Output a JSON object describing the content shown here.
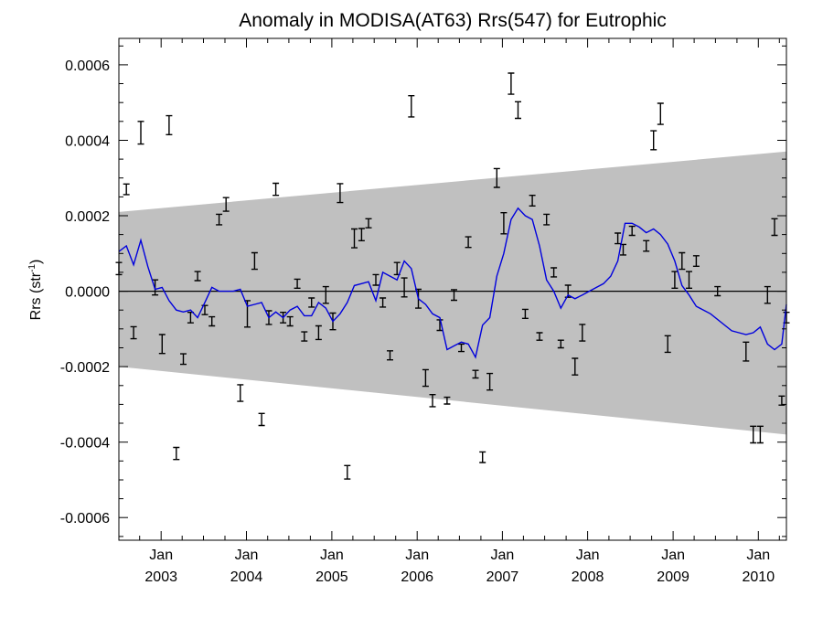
{
  "chart_data": {
    "type": "line",
    "title": "Anomaly in MODISA(AT63) Rrs(547) for Eutrophic",
    "ylabel_prefix": "Rrs (str",
    "ylabel_sup": "-1",
    "ylabel_suffix": ")",
    "xlabel": "",
    "ylim": [
      -0.00066,
      0.00067
    ],
    "xlim": [
      "2002-07-04",
      "2010-05-01"
    ],
    "y_ticks": [
      {
        "value": 0.0006,
        "label": "0.0006"
      },
      {
        "value": 0.0004,
        "label": "0.0004"
      },
      {
        "value": 0.0002,
        "label": "0.0002"
      },
      {
        "value": 0.0,
        "label": "0.0000"
      },
      {
        "value": -0.0002,
        "label": "-0.0002"
      },
      {
        "value": -0.0004,
        "label": "-0.0004"
      },
      {
        "value": -0.0006,
        "label": "-0.0006"
      }
    ],
    "x_ticks": [
      {
        "date": "2003-01-01",
        "month": "Jan",
        "year": "2003"
      },
      {
        "date": "2004-01-01",
        "month": "Jan",
        "year": "2004"
      },
      {
        "date": "2005-01-01",
        "month": "Jan",
        "year": "2005"
      },
      {
        "date": "2006-01-01",
        "month": "Jan",
        "year": "2006"
      },
      {
        "date": "2007-01-01",
        "month": "Jan",
        "year": "2007"
      },
      {
        "date": "2008-01-01",
        "month": "Jan",
        "year": "2008"
      },
      {
        "date": "2009-01-01",
        "month": "Jan",
        "year": "2009"
      },
      {
        "date": "2010-01-01",
        "month": "Jan",
        "year": "2010"
      }
    ],
    "zero_line": 0.0,
    "band": {
      "upper": [
        {
          "date": "2002-07-04",
          "value": 0.00021
        },
        {
          "date": "2010-05-01",
          "value": 0.00037
        }
      ],
      "lower": [
        {
          "date": "2002-07-04",
          "value": -0.0002
        },
        {
          "date": "2010-05-01",
          "value": -0.00038
        }
      ],
      "color": "#c0c0c0"
    },
    "series": [
      {
        "kind": "line",
        "color": "#0000dd",
        "points": [
          [
            "2002-07-04",
            0.000105
          ],
          [
            "2002-08-05",
            0.00012
          ],
          [
            "2002-09-05",
            7e-05
          ],
          [
            "2002-10-06",
            0.000135
          ],
          [
            "2002-11-05",
            6.5e-05
          ],
          [
            "2002-12-06",
            5e-06
          ],
          [
            "2003-01-05",
            1e-05
          ],
          [
            "2003-02-04",
            -2.5e-05
          ],
          [
            "2003-03-07",
            -5e-05
          ],
          [
            "2003-04-06",
            -5.5e-05
          ],
          [
            "2003-05-07",
            -5e-05
          ],
          [
            "2003-06-06",
            -7e-05
          ],
          [
            "2003-07-07",
            -3e-05
          ],
          [
            "2003-08-06",
            1e-05
          ],
          [
            "2003-09-06",
            0.0
          ],
          [
            "2003-10-06",
            0.0
          ],
          [
            "2003-11-06",
            0.0
          ],
          [
            "2003-12-06",
            5e-06
          ],
          [
            "2004-01-05",
            -4e-05
          ],
          [
            "2004-02-05",
            -3.5e-05
          ],
          [
            "2004-03-06",
            -3e-05
          ],
          [
            "2004-04-06",
            -7e-05
          ],
          [
            "2004-05-06",
            -5.5e-05
          ],
          [
            "2004-06-06",
            -7e-05
          ],
          [
            "2004-07-06",
            -5e-05
          ],
          [
            "2004-08-06",
            -4e-05
          ],
          [
            "2004-09-05",
            -6.5e-05
          ],
          [
            "2004-10-06",
            -6.5e-05
          ],
          [
            "2004-11-05",
            -3e-05
          ],
          [
            "2004-12-06",
            -4.5e-05
          ],
          [
            "2005-01-05",
            -8e-05
          ],
          [
            "2005-02-05",
            -6e-05
          ],
          [
            "2005-03-08",
            -3e-05
          ],
          [
            "2005-04-07",
            1.5e-05
          ],
          [
            "2005-05-08",
            2e-05
          ],
          [
            "2005-06-07",
            2.5e-05
          ],
          [
            "2005-07-08",
            -2.5e-05
          ],
          [
            "2005-08-07",
            5e-05
          ],
          [
            "2005-09-07",
            4e-05
          ],
          [
            "2005-10-07",
            3e-05
          ],
          [
            "2005-11-07",
            8e-05
          ],
          [
            "2005-12-07",
            6e-05
          ],
          [
            "2006-01-06",
            -2e-05
          ],
          [
            "2006-02-06",
            -3.5e-05
          ],
          [
            "2006-03-08",
            -6e-05
          ],
          [
            "2006-04-08",
            -7e-05
          ],
          [
            "2006-05-09",
            -0.000155
          ],
          [
            "2006-06-08",
            -0.000145
          ],
          [
            "2006-07-09",
            -0.000135
          ],
          [
            "2006-08-08",
            -0.00014
          ],
          [
            "2006-09-08",
            -0.000175
          ],
          [
            "2006-10-08",
            -9e-05
          ],
          [
            "2006-11-08",
            -7e-05
          ],
          [
            "2006-12-08",
            4e-05
          ],
          [
            "2007-01-07",
            0.0001
          ],
          [
            "2007-02-07",
            0.00019
          ],
          [
            "2007-03-09",
            0.00022
          ],
          [
            "2007-04-09",
            0.0002
          ],
          [
            "2007-05-09",
            0.00019
          ],
          [
            "2007-06-09",
            0.00012
          ],
          [
            "2007-07-09",
            3e-05
          ],
          [
            "2007-08-09",
            0.0
          ],
          [
            "2007-09-08",
            -4.5e-05
          ],
          [
            "2007-10-09",
            -1e-05
          ],
          [
            "2007-11-08",
            -2e-05
          ],
          [
            "2007-12-09",
            -1e-05
          ],
          [
            "2008-01-08",
            0.0
          ],
          [
            "2008-02-08",
            1e-05
          ],
          [
            "2008-03-09",
            2e-05
          ],
          [
            "2008-04-09",
            4e-05
          ],
          [
            "2008-05-09",
            8e-05
          ],
          [
            "2008-06-09",
            0.00018
          ],
          [
            "2008-07-09",
            0.00018
          ],
          [
            "2008-08-09",
            0.00017
          ],
          [
            "2008-09-08",
            0.000155
          ],
          [
            "2008-10-09",
            0.000165
          ],
          [
            "2008-11-08",
            0.00015
          ],
          [
            "2008-12-09",
            0.000125
          ],
          [
            "2009-01-08",
            8e-05
          ],
          [
            "2009-02-08",
            1.5e-05
          ],
          [
            "2009-03-10",
            -1e-05
          ],
          [
            "2009-04-10",
            -4e-05
          ],
          [
            "2009-05-11",
            -5e-05
          ],
          [
            "2009-06-10",
            -6e-05
          ],
          [
            "2009-09-09",
            -0.000105
          ],
          [
            "2009-10-10",
            -0.00011
          ],
          [
            "2009-11-09",
            -0.000115
          ],
          [
            "2009-12-10",
            -0.00011
          ],
          [
            "2010-01-09",
            -9.5e-05
          ],
          [
            "2010-02-09",
            -0.00014
          ],
          [
            "2010-03-11",
            -0.000155
          ],
          [
            "2010-04-11",
            -0.00014
          ],
          [
            "2010-05-01",
            -3.5e-05
          ]
        ]
      },
      {
        "kind": "errorbar",
        "color": "#000000",
        "points": [
          {
            "date": "2002-07-04",
            "value": 6e-05,
            "err": 1.6e-05
          },
          {
            "date": "2002-08-05",
            "value": 0.00027,
            "err": 1.4e-05
          },
          {
            "date": "2002-09-05",
            "value": -0.00011,
            "err": 1.6e-05
          },
          {
            "date": "2002-10-06",
            "value": 0.00042,
            "err": 3e-05
          },
          {
            "date": "2002-12-06",
            "value": 1e-05,
            "err": 2e-05
          },
          {
            "date": "2003-01-05",
            "value": -0.00014,
            "err": 2.5e-05
          },
          {
            "date": "2003-02-04",
            "value": 0.00044,
            "err": 2.5e-05
          },
          {
            "date": "2003-03-07",
            "value": -0.00043,
            "err": 1.6e-05
          },
          {
            "date": "2003-04-06",
            "value": -0.00018,
            "err": 1.4e-05
          },
          {
            "date": "2003-05-07",
            "value": -7e-05,
            "err": 1.4e-05
          },
          {
            "date": "2003-06-06",
            "value": 4e-05,
            "err": 1.2e-05
          },
          {
            "date": "2003-07-07",
            "value": -5e-05,
            "err": 1.2e-05
          },
          {
            "date": "2003-08-06",
            "value": -8e-05,
            "err": 1.2e-05
          },
          {
            "date": "2003-09-06",
            "value": 0.00019,
            "err": 1.4e-05
          },
          {
            "date": "2003-10-06",
            "value": 0.00023,
            "err": 1.8e-05
          },
          {
            "date": "2003-12-06",
            "value": -0.00027,
            "err": 2.2e-05
          },
          {
            "date": "2004-01-05",
            "value": -6e-05,
            "err": 3.5e-05
          },
          {
            "date": "2004-02-05",
            "value": 8e-05,
            "err": 2.2e-05
          },
          {
            "date": "2004-03-06",
            "value": -0.00034,
            "err": 1.6e-05
          },
          {
            "date": "2004-04-06",
            "value": -7e-05,
            "err": 1.8e-05
          },
          {
            "date": "2004-05-06",
            "value": 0.00027,
            "err": 1.6e-05
          },
          {
            "date": "2004-06-06",
            "value": -7e-05,
            "err": 1.4e-05
          },
          {
            "date": "2004-07-06",
            "value": -8e-05,
            "err": 1.2e-05
          },
          {
            "date": "2004-08-06",
            "value": 2e-05,
            "err": 1.2e-05
          },
          {
            "date": "2004-09-05",
            "value": -0.00012,
            "err": 1.2e-05
          },
          {
            "date": "2004-10-06",
            "value": -3e-05,
            "err": 1.2e-05
          },
          {
            "date": "2004-11-05",
            "value": -0.00011,
            "err": 1.8e-05
          },
          {
            "date": "2004-12-06",
            "value": -1e-05,
            "err": 2.2e-05
          },
          {
            "date": "2005-01-05",
            "value": -8e-05,
            "err": 2.2e-05
          },
          {
            "date": "2005-02-05",
            "value": 0.00026,
            "err": 2.5e-05
          },
          {
            "date": "2005-03-08",
            "value": -0.00048,
            "err": 1.8e-05
          },
          {
            "date": "2005-04-07",
            "value": 0.00014,
            "err": 2.5e-05
          },
          {
            "date": "2005-05-08",
            "value": 0.00015,
            "err": 1.6e-05
          },
          {
            "date": "2005-06-07",
            "value": 0.00018,
            "err": 1.2e-05
          },
          {
            "date": "2005-07-08",
            "value": 3e-05,
            "err": 1.4e-05
          },
          {
            "date": "2005-08-07",
            "value": -3e-05,
            "err": 1.2e-05
          },
          {
            "date": "2005-09-07",
            "value": -0.00017,
            "err": 1.2e-05
          },
          {
            "date": "2005-10-07",
            "value": 6e-05,
            "err": 1.6e-05
          },
          {
            "date": "2005-11-07",
            "value": 1e-05,
            "err": 2.5e-05
          },
          {
            "date": "2005-12-07",
            "value": 0.00049,
            "err": 2.8e-05
          },
          {
            "date": "2006-01-06",
            "value": -2e-05,
            "err": 2.5e-05
          },
          {
            "date": "2006-02-06",
            "value": -0.00023,
            "err": 2.2e-05
          },
          {
            "date": "2006-03-08",
            "value": -0.00029,
            "err": 1.6e-05
          },
          {
            "date": "2006-04-08",
            "value": -9e-05,
            "err": 1.4e-05
          },
          {
            "date": "2006-05-09",
            "value": -0.00029,
            "err": 9e-06
          },
          {
            "date": "2006-06-08",
            "value": -1e-05,
            "err": 1.4e-05
          },
          {
            "date": "2006-07-09",
            "value": -0.00015,
            "err": 1e-05
          },
          {
            "date": "2006-08-08",
            "value": 0.00013,
            "err": 1.4e-05
          },
          {
            "date": "2006-09-08",
            "value": -0.00022,
            "err": 1e-05
          },
          {
            "date": "2006-10-08",
            "value": -0.00044,
            "err": 1.4e-05
          },
          {
            "date": "2006-11-08",
            "value": -0.00024,
            "err": 2.2e-05
          },
          {
            "date": "2006-12-08",
            "value": 0.0003,
            "err": 2.5e-05
          },
          {
            "date": "2007-01-07",
            "value": 0.00018,
            "err": 2.8e-05
          },
          {
            "date": "2007-02-07",
            "value": 0.00055,
            "err": 2.8e-05
          },
          {
            "date": "2007-03-09",
            "value": 0.00048,
            "err": 2.2e-05
          },
          {
            "date": "2007-04-09",
            "value": -6e-05,
            "err": 1.2e-05
          },
          {
            "date": "2007-05-09",
            "value": 0.00024,
            "err": 1.4e-05
          },
          {
            "date": "2007-06-09",
            "value": -0.00012,
            "err": 1e-05
          },
          {
            "date": "2007-07-09",
            "value": 0.00019,
            "err": 1.4e-05
          },
          {
            "date": "2007-08-09",
            "value": 5e-05,
            "err": 1.2e-05
          },
          {
            "date": "2007-09-08",
            "value": -0.00014,
            "err": 1e-05
          },
          {
            "date": "2007-10-09",
            "value": 0.0,
            "err": 1.6e-05
          },
          {
            "date": "2007-11-08",
            "value": -0.0002,
            "err": 2.2e-05
          },
          {
            "date": "2007-12-09",
            "value": -0.00011,
            "err": 2.2e-05
          },
          {
            "date": "2008-05-09",
            "value": 0.00014,
            "err": 1.4e-05
          },
          {
            "date": "2008-06-01",
            "value": 0.00011,
            "err": 1.4e-05
          },
          {
            "date": "2008-07-09",
            "value": 0.00016,
            "err": 1.2e-05
          },
          {
            "date": "2008-09-08",
            "value": 0.00012,
            "err": 1.4e-05
          },
          {
            "date": "2008-10-09",
            "value": 0.0004,
            "err": 2.5e-05
          },
          {
            "date": "2008-11-08",
            "value": 0.00047,
            "err": 2.8e-05
          },
          {
            "date": "2008-12-09",
            "value": -0.00014,
            "err": 2.2e-05
          },
          {
            "date": "2009-01-08",
            "value": 3e-05,
            "err": 2.2e-05
          },
          {
            "date": "2009-02-08",
            "value": 8e-05,
            "err": 2.2e-05
          },
          {
            "date": "2009-03-10",
            "value": 3e-05,
            "err": 2.2e-05
          },
          {
            "date": "2009-04-10",
            "value": 8e-05,
            "err": 1.4e-05
          },
          {
            "date": "2009-07-10",
            "value": 0.0,
            "err": 1.2e-05
          },
          {
            "date": "2009-11-09",
            "value": -0.00016,
            "err": 2.5e-05
          },
          {
            "date": "2009-12-10",
            "value": -0.00038,
            "err": 2.2e-05
          },
          {
            "date": "2010-01-09",
            "value": -0.00038,
            "err": 2.2e-05
          },
          {
            "date": "2010-02-09",
            "value": -1e-05,
            "err": 2.2e-05
          },
          {
            "date": "2010-03-11",
            "value": 0.00017,
            "err": 2.2e-05
          },
          {
            "date": "2010-04-11",
            "value": -0.00029,
            "err": 1.2e-05
          },
          {
            "date": "2010-05-01",
            "value": -7e-05,
            "err": 1.4e-05
          }
        ]
      }
    ]
  }
}
